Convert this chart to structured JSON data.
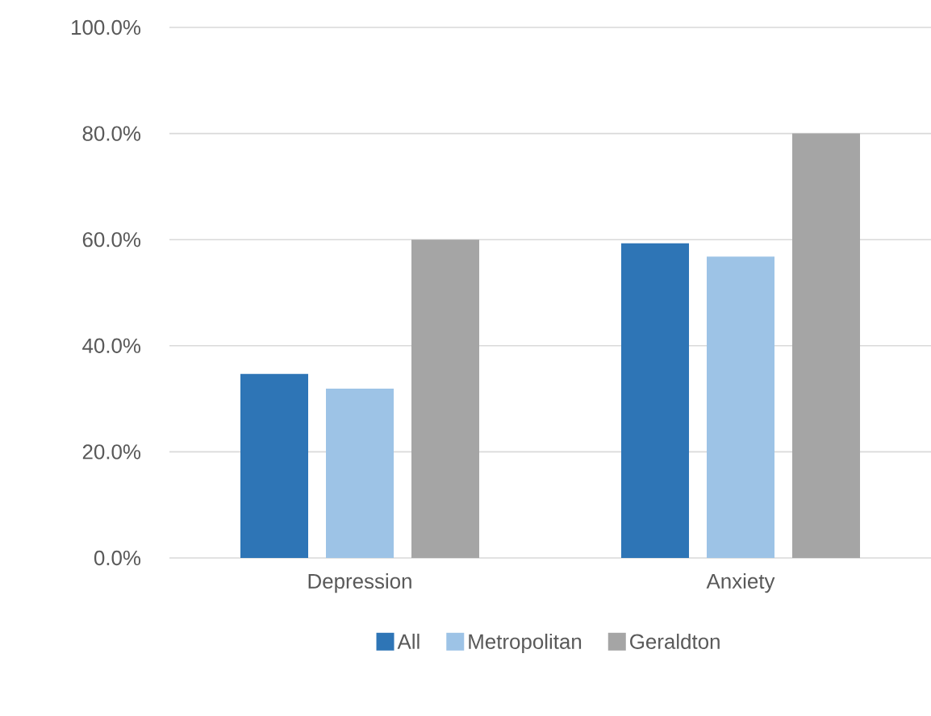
{
  "chart_data": {
    "type": "bar",
    "categories": [
      "Depression",
      "Anxiety"
    ],
    "series": [
      {
        "name": "All",
        "color": "#2e75b6",
        "values": [
          34.7,
          59.3
        ]
      },
      {
        "name": "Metropolitan",
        "color": "#9dc3e6",
        "values": [
          31.9,
          56.8
        ]
      },
      {
        "name": "Geraldton",
        "color": "#a5a5a5",
        "values": [
          60.0,
          80.0
        ]
      }
    ],
    "ylim": [
      0,
      100
    ],
    "yticks": [
      {
        "value": 0,
        "label": "0.0%"
      },
      {
        "value": 20,
        "label": "20.0%"
      },
      {
        "value": 40,
        "label": "40.0%"
      },
      {
        "value": 60,
        "label": "60.0%"
      },
      {
        "value": 80,
        "label": "80.0%"
      },
      {
        "value": 100,
        "label": "100.0%"
      }
    ],
    "grid": "y",
    "legend": "bottom"
  }
}
